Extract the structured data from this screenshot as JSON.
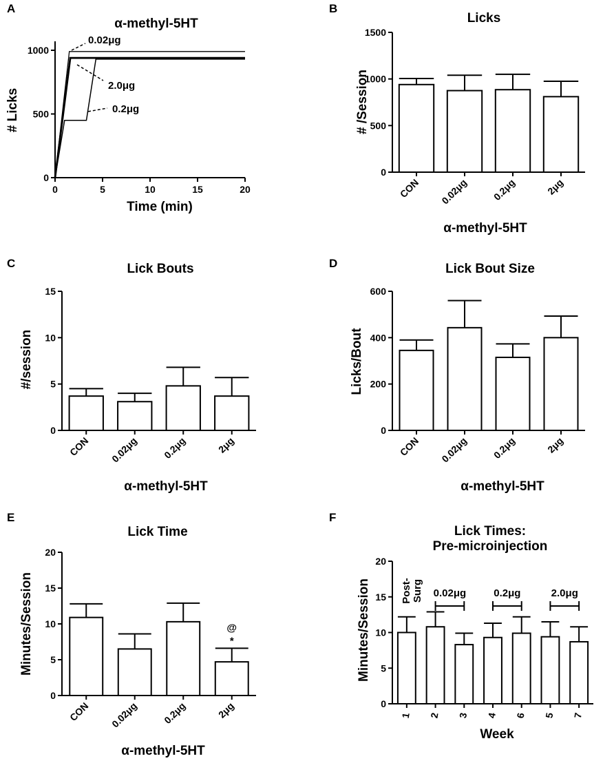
{
  "chart_data": [
    {
      "panel": "A",
      "type": "line",
      "title": "α-methyl-5HT",
      "xlabel": "Time (min)",
      "ylabel": "# Licks",
      "xlim": [
        0,
        20
      ],
      "ylim": [
        0,
        1000
      ],
      "xticks": [
        "0",
        "5",
        "10",
        "15",
        "20"
      ],
      "yticks": [
        "0",
        "500",
        "1000"
      ],
      "series": [
        {
          "name": "0.02μg",
          "points": [
            [
              0,
              0
            ],
            [
              1.5,
              990
            ],
            [
              20,
              990
            ]
          ]
        },
        {
          "name": "2.0μg",
          "points": [
            [
              0,
              0
            ],
            [
              1.6,
              940
            ],
            [
              20,
              940
            ]
          ]
        },
        {
          "name": "0.2μg",
          "points": [
            [
              0,
              0
            ],
            [
              1,
              450
            ],
            [
              3.3,
              450
            ],
            [
              4.3,
              930
            ],
            [
              20,
              930
            ]
          ]
        }
      ],
      "annotations": [
        "0.02μg",
        "2.0μg",
        "0.2μg"
      ]
    },
    {
      "panel": "B",
      "type": "bar",
      "title": "Licks",
      "xlabel": "α-methyl-5HT",
      "ylabel": "# /Session",
      "ylim": [
        0,
        1500
      ],
      "yticks": [
        "0",
        "500",
        "1000",
        "1500"
      ],
      "categories": [
        "CON",
        "0.02μg",
        "0.2μg",
        "2μg"
      ],
      "values": [
        940,
        875,
        885,
        810
      ],
      "errors": [
        65,
        165,
        165,
        165
      ]
    },
    {
      "panel": "C",
      "type": "bar",
      "title": "Lick Bouts",
      "xlabel": "α-methyl-5HT",
      "ylabel": "#/session",
      "ylim": [
        0,
        15
      ],
      "yticks": [
        "0",
        "5",
        "10",
        "15"
      ],
      "categories": [
        "CON",
        "0.02μg",
        "0.2μg",
        "2μg"
      ],
      "values": [
        3.7,
        3.1,
        4.8,
        3.7
      ],
      "errors": [
        0.8,
        0.9,
        2.0,
        2.0
      ]
    },
    {
      "panel": "D",
      "type": "bar",
      "title": "Lick Bout Size",
      "xlabel": "α-methyl-5HT",
      "ylabel": "Licks/Bout",
      "ylim": [
        0,
        600
      ],
      "yticks": [
        "0",
        "200",
        "400",
        "600"
      ],
      "categories": [
        "CON",
        "0.02μg",
        "0.2μg",
        "2μg"
      ],
      "values": [
        345,
        443,
        315,
        400
      ],
      "errors": [
        45,
        117,
        58,
        93
      ]
    },
    {
      "panel": "E",
      "type": "bar",
      "title": "Lick Time",
      "xlabel": "α-methyl-5HT",
      "ylabel": "Minutes/Session",
      "ylim": [
        0,
        20
      ],
      "yticks": [
        "0",
        "5",
        "10",
        "15",
        "20"
      ],
      "categories": [
        "CON",
        "0.02μg",
        "0.2μg",
        "2μg"
      ],
      "values": [
        10.9,
        6.5,
        10.3,
        4.7
      ],
      "errors": [
        1.9,
        2.1,
        2.6,
        1.9
      ],
      "annotations": [
        "@",
        "*"
      ]
    },
    {
      "panel": "F",
      "type": "bar",
      "title": "Lick Times:",
      "subtitle": "Pre-microinjection",
      "xlabel": "Week",
      "ylabel": "Minutes/Session",
      "ylim": [
        0,
        20
      ],
      "yticks": [
        "0",
        "5",
        "10",
        "15",
        "20"
      ],
      "categories": [
        "1",
        "2",
        "3",
        "4",
        "6",
        "5",
        "7"
      ],
      "values": [
        10.0,
        10.8,
        8.3,
        9.3,
        9.9,
        9.4,
        8.7
      ],
      "errors": [
        2.2,
        2.1,
        1.6,
        2.0,
        2.3,
        2.1,
        2.1
      ],
      "annotations": [
        "Post-",
        "Surg",
        "0.02μg",
        "0.2μg",
        "2.0μg"
      ]
    }
  ]
}
